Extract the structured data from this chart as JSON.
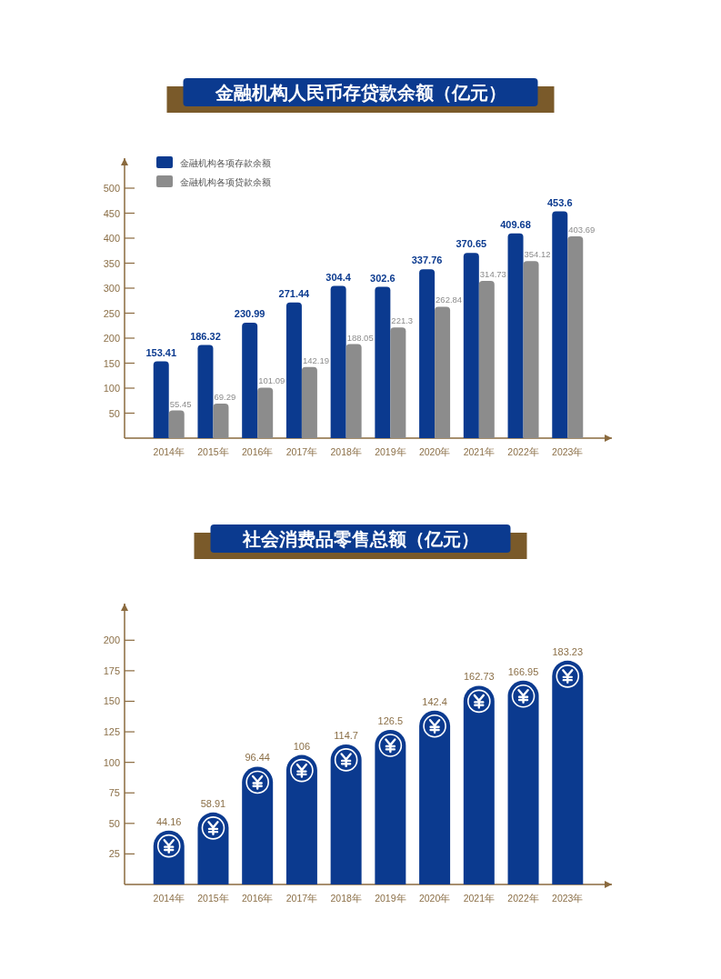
{
  "chart_data": [
    {
      "type": "bar",
      "title": "金融机构人民币存贷款余额（亿元）",
      "categories": [
        "2014年",
        "2015年",
        "2016年",
        "2017年",
        "2018年",
        "2019年",
        "2020年",
        "2021年",
        "2022年",
        "2023年"
      ],
      "series": [
        {
          "name": "金融机构各项存款余额",
          "color": "#0b3a8f",
          "values": [
            153.41,
            186.32,
            230.99,
            271.44,
            304.4,
            302.6,
            337.76,
            370.65,
            409.68,
            453.6
          ]
        },
        {
          "name": "金融机构各项贷款余额",
          "color": "#8c8c8c",
          "values": [
            55.45,
            69.29,
            101.09,
            142.19,
            188.05,
            221.3,
            262.84,
            314.73,
            354.12,
            403.69
          ]
        }
      ],
      "ylim": [
        0,
        560
      ],
      "yticks": [
        50,
        100,
        150,
        200,
        250,
        300,
        350,
        400,
        450,
        500
      ],
      "data_labels": true,
      "legend": "top left"
    },
    {
      "type": "bar",
      "title": "社会消费品零售总额（亿元）",
      "categories": [
        "2014年",
        "2015年",
        "2016年",
        "2017年",
        "2018年",
        "2019年",
        "2020年",
        "2021年",
        "2022年",
        "2023年"
      ],
      "values": [
        44.16,
        58.91,
        96.44,
        106,
        114.7,
        126.5,
        142.4,
        162.73,
        166.95,
        183.23
      ],
      "color": "#0b3a8f",
      "ylim": [
        0,
        230
      ],
      "yticks": [
        25,
        50,
        75,
        100,
        125,
        150,
        175,
        200
      ],
      "data_labels": true
    }
  ]
}
